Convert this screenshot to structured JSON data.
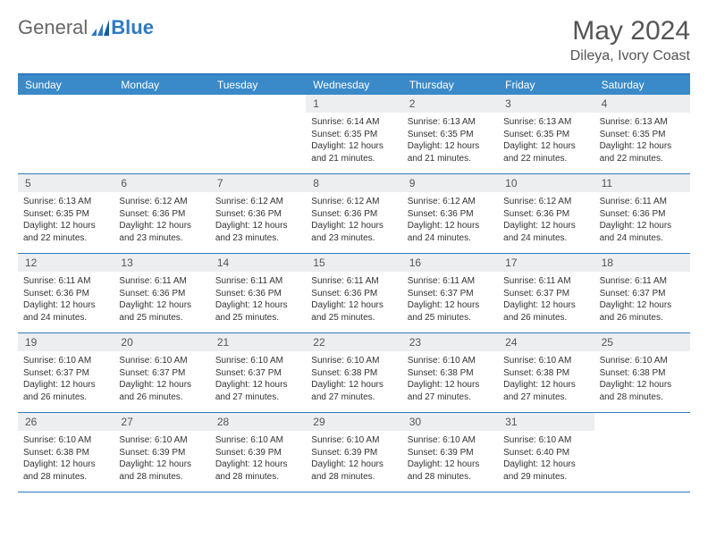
{
  "brand": {
    "part1": "General",
    "part2": "Blue"
  },
  "title": "May 2024",
  "location": "Dileya, Ivory Coast",
  "colors": {
    "header_bg": "#3a8ac9",
    "border": "#2f79c2",
    "daynum_bg": "#eceeef",
    "text": "#333333"
  },
  "day_labels": [
    "Sunday",
    "Monday",
    "Tuesday",
    "Wednesday",
    "Thursday",
    "Friday",
    "Saturday"
  ],
  "weeks": [
    [
      null,
      null,
      null,
      null,
      {
        "n": "1",
        "sr": "6:14 AM",
        "ss": "6:35 PM",
        "dl": "12 hours and 21 minutes."
      },
      {
        "n": "2",
        "sr": "6:13 AM",
        "ss": "6:35 PM",
        "dl": "12 hours and 21 minutes."
      },
      {
        "n": "3",
        "sr": "6:13 AM",
        "ss": "6:35 PM",
        "dl": "12 hours and 22 minutes."
      },
      {
        "n": "4",
        "sr": "6:13 AM",
        "ss": "6:35 PM",
        "dl": "12 hours and 22 minutes."
      }
    ],
    [
      {
        "n": "5",
        "sr": "6:13 AM",
        "ss": "6:35 PM",
        "dl": "12 hours and 22 minutes."
      },
      {
        "n": "6",
        "sr": "6:12 AM",
        "ss": "6:36 PM",
        "dl": "12 hours and 23 minutes."
      },
      {
        "n": "7",
        "sr": "6:12 AM",
        "ss": "6:36 PM",
        "dl": "12 hours and 23 minutes."
      },
      {
        "n": "8",
        "sr": "6:12 AM",
        "ss": "6:36 PM",
        "dl": "12 hours and 23 minutes."
      },
      {
        "n": "9",
        "sr": "6:12 AM",
        "ss": "6:36 PM",
        "dl": "12 hours and 24 minutes."
      },
      {
        "n": "10",
        "sr": "6:12 AM",
        "ss": "6:36 PM",
        "dl": "12 hours and 24 minutes."
      },
      {
        "n": "11",
        "sr": "6:11 AM",
        "ss": "6:36 PM",
        "dl": "12 hours and 24 minutes."
      }
    ],
    [
      {
        "n": "12",
        "sr": "6:11 AM",
        "ss": "6:36 PM",
        "dl": "12 hours and 24 minutes."
      },
      {
        "n": "13",
        "sr": "6:11 AM",
        "ss": "6:36 PM",
        "dl": "12 hours and 25 minutes."
      },
      {
        "n": "14",
        "sr": "6:11 AM",
        "ss": "6:36 PM",
        "dl": "12 hours and 25 minutes."
      },
      {
        "n": "15",
        "sr": "6:11 AM",
        "ss": "6:36 PM",
        "dl": "12 hours and 25 minutes."
      },
      {
        "n": "16",
        "sr": "6:11 AM",
        "ss": "6:37 PM",
        "dl": "12 hours and 25 minutes."
      },
      {
        "n": "17",
        "sr": "6:11 AM",
        "ss": "6:37 PM",
        "dl": "12 hours and 26 minutes."
      },
      {
        "n": "18",
        "sr": "6:11 AM",
        "ss": "6:37 PM",
        "dl": "12 hours and 26 minutes."
      }
    ],
    [
      {
        "n": "19",
        "sr": "6:10 AM",
        "ss": "6:37 PM",
        "dl": "12 hours and 26 minutes."
      },
      {
        "n": "20",
        "sr": "6:10 AM",
        "ss": "6:37 PM",
        "dl": "12 hours and 26 minutes."
      },
      {
        "n": "21",
        "sr": "6:10 AM",
        "ss": "6:37 PM",
        "dl": "12 hours and 27 minutes."
      },
      {
        "n": "22",
        "sr": "6:10 AM",
        "ss": "6:38 PM",
        "dl": "12 hours and 27 minutes."
      },
      {
        "n": "23",
        "sr": "6:10 AM",
        "ss": "6:38 PM",
        "dl": "12 hours and 27 minutes."
      },
      {
        "n": "24",
        "sr": "6:10 AM",
        "ss": "6:38 PM",
        "dl": "12 hours and 27 minutes."
      },
      {
        "n": "25",
        "sr": "6:10 AM",
        "ss": "6:38 PM",
        "dl": "12 hours and 28 minutes."
      }
    ],
    [
      {
        "n": "26",
        "sr": "6:10 AM",
        "ss": "6:38 PM",
        "dl": "12 hours and 28 minutes."
      },
      {
        "n": "27",
        "sr": "6:10 AM",
        "ss": "6:39 PM",
        "dl": "12 hours and 28 minutes."
      },
      {
        "n": "28",
        "sr": "6:10 AM",
        "ss": "6:39 PM",
        "dl": "12 hours and 28 minutes."
      },
      {
        "n": "29",
        "sr": "6:10 AM",
        "ss": "6:39 PM",
        "dl": "12 hours and 28 minutes."
      },
      {
        "n": "30",
        "sr": "6:10 AM",
        "ss": "6:39 PM",
        "dl": "12 hours and 28 minutes."
      },
      {
        "n": "31",
        "sr": "6:10 AM",
        "ss": "6:40 PM",
        "dl": "12 hours and 29 minutes."
      },
      null
    ]
  ]
}
